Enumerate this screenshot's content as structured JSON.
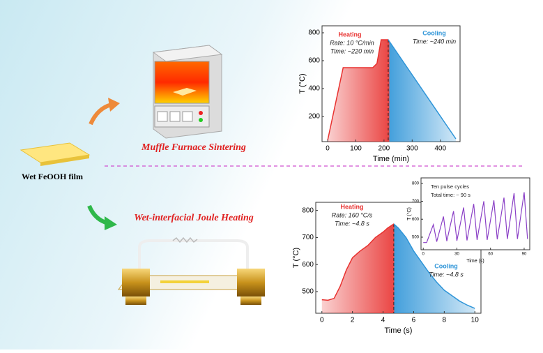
{
  "labels": {
    "film": "Wet FeOOH film",
    "furnace": "Muffle Furnace Sintering",
    "joule": "Wet-interfacial Joule Heating"
  },
  "chart_data": [
    {
      "type": "line",
      "x_label": "Time (min)",
      "y_label": "T (°C)",
      "x": [
        0,
        55,
        160,
        175,
        190,
        215,
        455
      ],
      "values": [
        30,
        550,
        550,
        580,
        750,
        750,
        40
      ],
      "split_x": 215,
      "heating_color": "#e8312f",
      "cooling_color": "#2f95d8",
      "xlim": [
        -20,
        470
      ],
      "xticks": [
        0,
        100,
        200,
        300,
        400
      ],
      "ylim": [
        20,
        850
      ],
      "yticks": [
        200,
        400,
        600,
        800
      ],
      "annotations": [
        "Heating",
        "Rate: 10 °C/min",
        "Time: ~220 min",
        "Cooling",
        "Time: ~240 min"
      ]
    },
    {
      "type": "line",
      "x_label": "Time (s)",
      "y_label": "T (°C)",
      "x": [
        0,
        0.4,
        0.8,
        1.2,
        1.6,
        2,
        2.5,
        3,
        3.5,
        4,
        4.3,
        4.7,
        5,
        5.5,
        6,
        6.5,
        7,
        7.5,
        8,
        8.5,
        9,
        9.5,
        10
      ],
      "values": [
        470,
        468,
        475,
        520,
        580,
        625,
        650,
        670,
        700,
        720,
        735,
        750,
        735,
        700,
        650,
        610,
        570,
        535,
        505,
        485,
        465,
        450,
        438
      ],
      "split_x": 4.7,
      "heating_color": "#e8312f",
      "cooling_color": "#2f95d8",
      "xlim": [
        -0.4,
        10.4
      ],
      "xticks": [
        0,
        2,
        4,
        6,
        8,
        10
      ],
      "ylim": [
        420,
        830
      ],
      "yticks": [
        500,
        600,
        700,
        800
      ],
      "annotations": [
        "Heating",
        "Rate: 160 °C/s",
        "Time: ~4.8 s",
        "Cooling",
        "Time: ~4.8 s"
      ]
    },
    {
      "type": "line",
      "x_label": "Time (s)",
      "y_label": "T (°C)",
      "color": "#8a3fc6",
      "x": [
        0,
        3,
        9,
        12,
        18,
        21,
        27,
        30,
        36,
        39,
        45,
        48,
        54,
        57,
        63,
        66,
        72,
        75,
        81,
        84,
        90,
        93
      ],
      "values": [
        470,
        470,
        570,
        475,
        615,
        478,
        645,
        480,
        665,
        482,
        685,
        485,
        700,
        485,
        705,
        488,
        720,
        490,
        745,
        490,
        750,
        490
      ],
      "xlim": [
        -2,
        95
      ],
      "xticks": [
        0,
        30,
        60,
        90
      ],
      "ylim": [
        430,
        830
      ],
      "yticks": [
        500,
        600,
        700,
        800
      ],
      "annotations": [
        "Ten pulse cycles",
        "Total time: ~ 90 s"
      ]
    }
  ]
}
